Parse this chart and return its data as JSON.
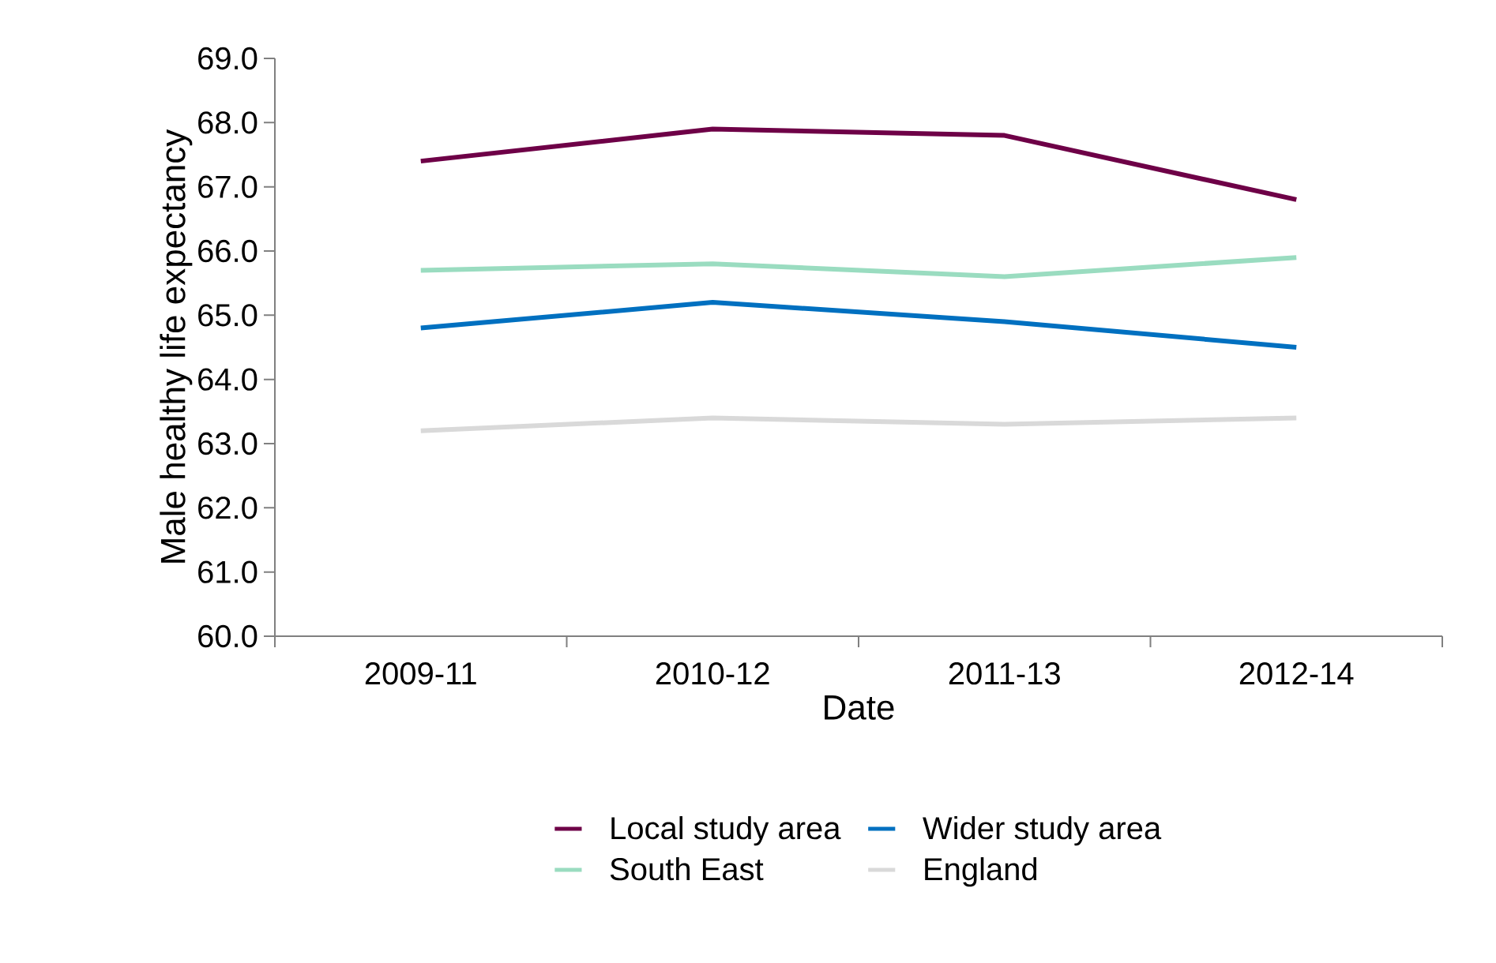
{
  "chart_data": {
    "type": "line",
    "xlabel": "Date",
    "ylabel": "Male healthy life expectancy",
    "categories": [
      "2009-11",
      "2010-12",
      "2011-13",
      "2012-14"
    ],
    "series": [
      {
        "name": "Local study area",
        "color": "#6e0047",
        "values": [
          67.4,
          67.9,
          67.8,
          66.8
        ]
      },
      {
        "name": "Wider study area",
        "color": "#0070c0",
        "values": [
          64.8,
          65.2,
          64.9,
          64.5
        ]
      },
      {
        "name": "South East",
        "color": "#9adcc0",
        "values": [
          65.7,
          65.8,
          65.6,
          65.9
        ]
      },
      {
        "name": "England",
        "color": "#d9d9d9",
        "values": [
          63.2,
          63.4,
          63.3,
          63.4
        ]
      }
    ],
    "ylim": [
      60,
      69
    ],
    "yticks": [
      {
        "value": 60,
        "label": "60.0"
      },
      {
        "value": 61,
        "label": "61.0"
      },
      {
        "value": 62,
        "label": "62.0"
      },
      {
        "value": 63,
        "label": "63.0"
      },
      {
        "value": 64,
        "label": "64.0"
      },
      {
        "value": 65,
        "label": "65.0"
      },
      {
        "value": 66,
        "label": "66.0"
      },
      {
        "value": 67,
        "label": "67.0"
      },
      {
        "value": 68,
        "label": "68.0"
      },
      {
        "value": 69,
        "label": "69.0"
      }
    ],
    "grid": false,
    "legend": "bottom",
    "marker": "none",
    "line_style": "solid"
  }
}
